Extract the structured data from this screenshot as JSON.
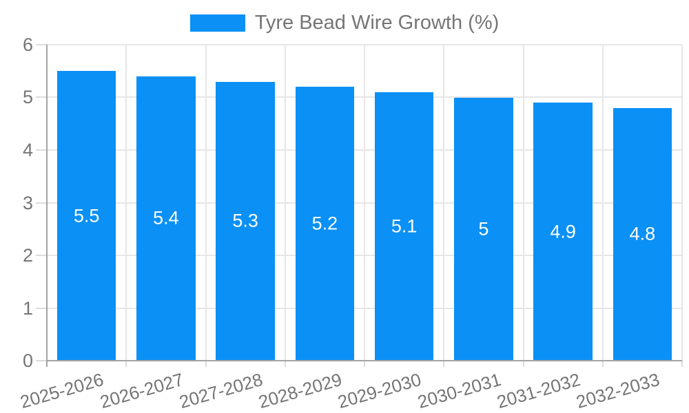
{
  "legend": {
    "label": "Tyre Bead Wire Growth (%)"
  },
  "colors": {
    "bar": "#0b90f5",
    "grid": "#e6e6e6",
    "axis": "#a3a3a3",
    "tick_mark": "#dcdcdc",
    "tick_text": "#757575",
    "value_text": "#ffffff",
    "background": "#ffffff"
  },
  "chart_data": {
    "type": "bar",
    "title": "",
    "series_name": "Tyre Bead Wire Growth (%)",
    "categories": [
      "2025-2026",
      "2026-2027",
      "2027-2028",
      "2028-2029",
      "2029-2030",
      "2030-2031",
      "2031-2032",
      "2032-2033"
    ],
    "values": [
      5.5,
      5.4,
      5.3,
      5.2,
      5.1,
      5,
      4.9,
      4.8
    ],
    "bar_labels": [
      "5.5",
      "5.4",
      "5.3",
      "5.2",
      "5.1",
      "5",
      "4.9",
      "4.8"
    ],
    "xlabel": "",
    "ylabel": "",
    "ylim": [
      0,
      6
    ],
    "yticks": [
      0,
      1,
      2,
      3,
      4,
      5,
      6
    ],
    "grid": true,
    "legend_position": "top",
    "x_label_rotation_deg": -16
  }
}
